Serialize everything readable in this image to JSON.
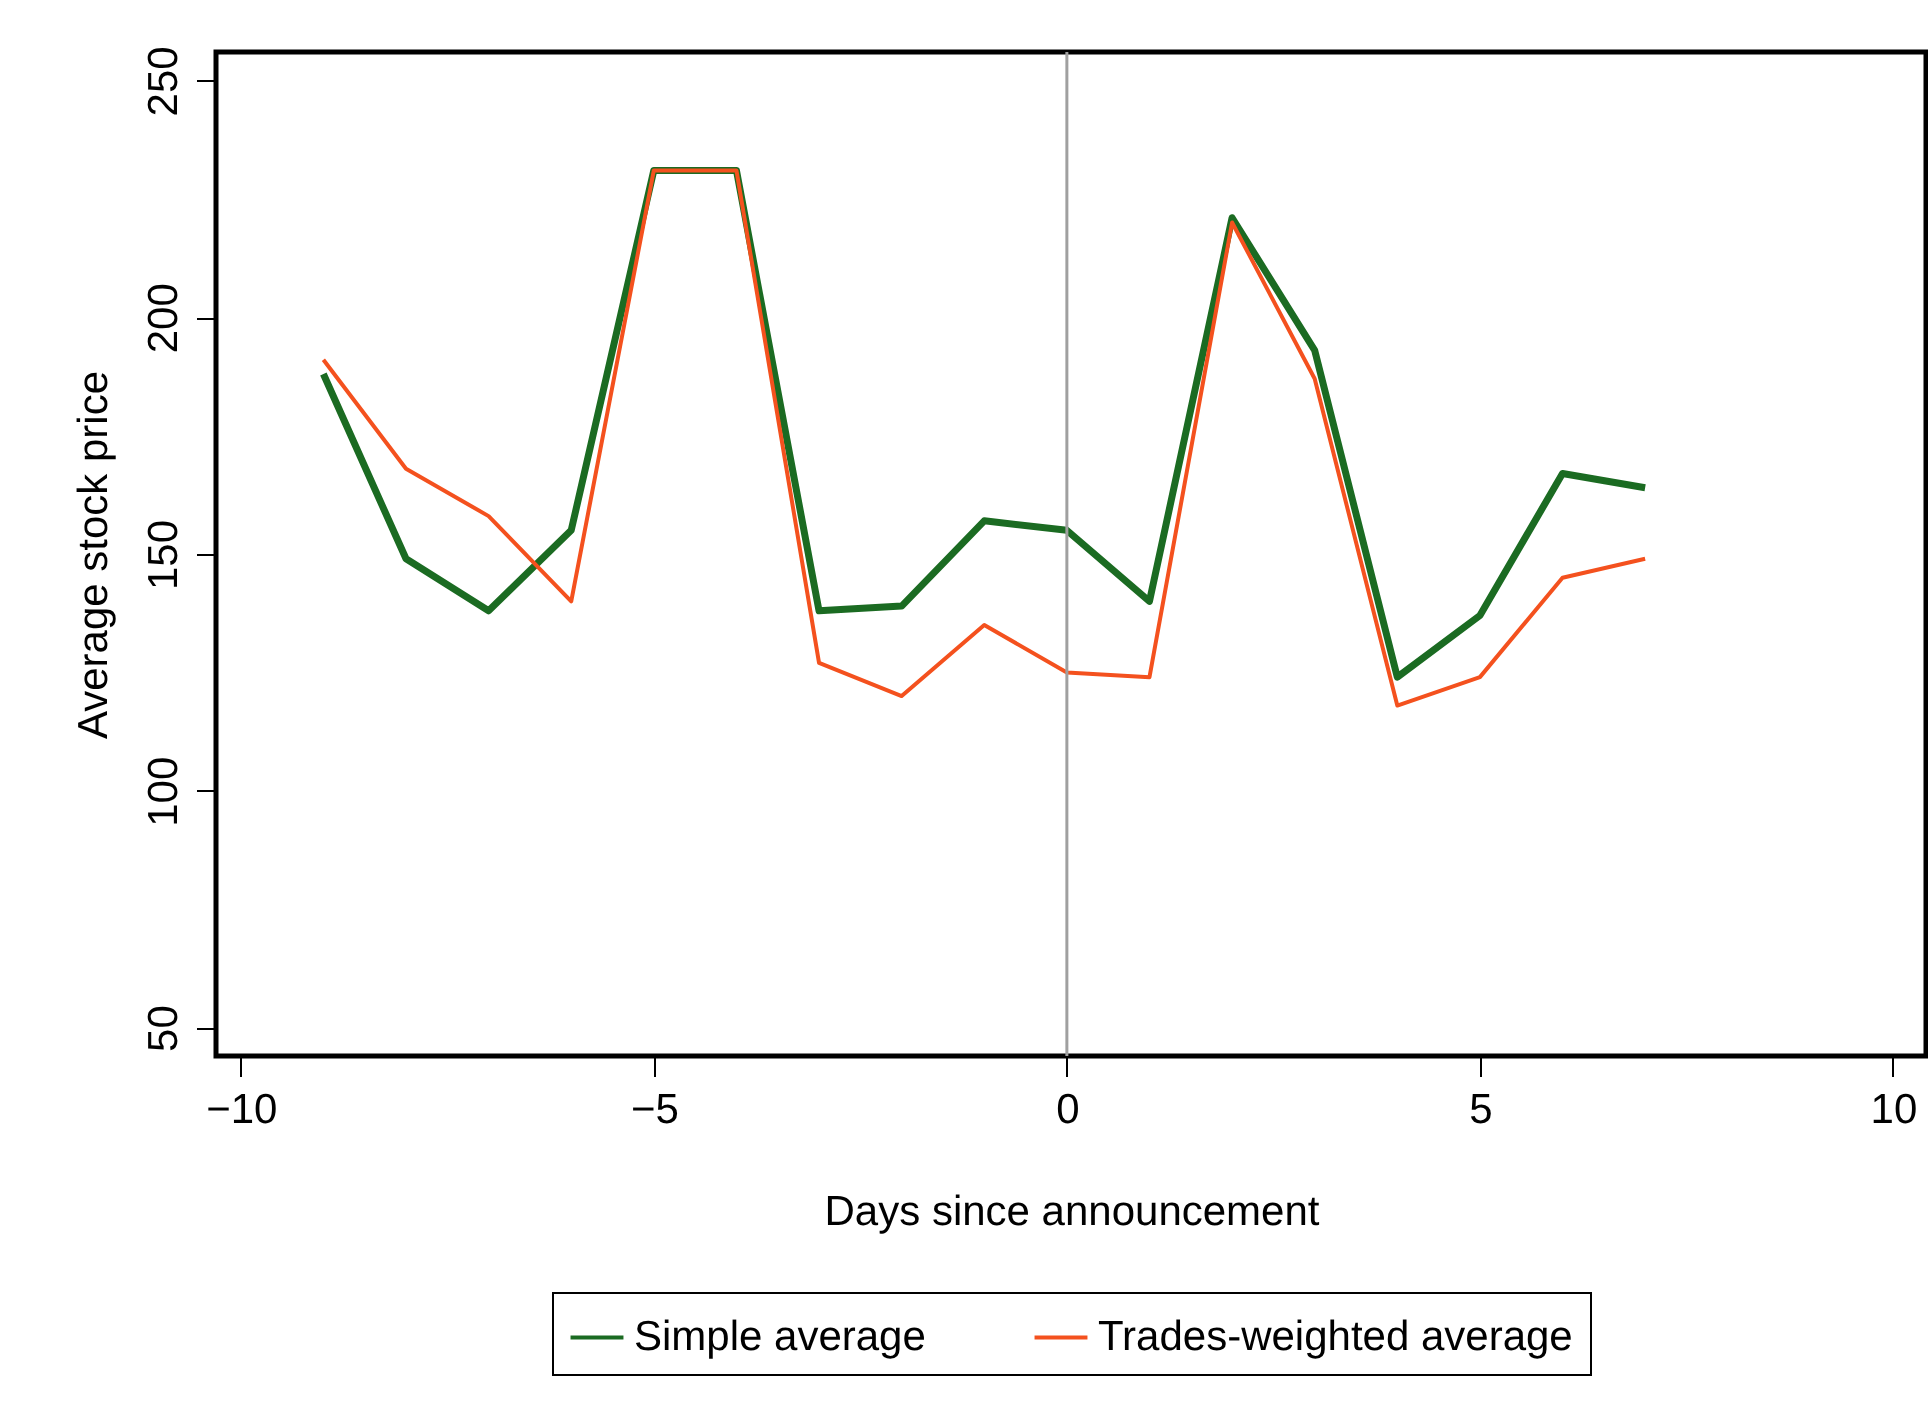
{
  "chart_data": {
    "type": "line",
    "xlabel": "Days since announcement",
    "ylabel": "Average stock price",
    "x": [
      -9,
      -8,
      -7,
      -6,
      -5,
      -4,
      -3,
      -2,
      -1,
      0,
      1,
      2,
      3,
      4,
      5,
      6,
      7
    ],
    "series": [
      {
        "name": "Simple average",
        "color": "#1b6b22",
        "values": [
          188,
          149,
          138,
          155,
          231,
          231,
          138,
          139,
          157,
          155,
          140,
          221,
          193,
          124,
          137,
          167,
          164
        ]
      },
      {
        "name": "Trades-weighted average",
        "color": "#f4511e",
        "values": [
          191,
          168,
          158,
          140,
          231,
          231,
          127,
          120,
          135,
          125,
          124,
          220,
          187,
          118,
          124,
          145,
          149
        ]
      }
    ],
    "xlim": [
      -10.3,
      10.4
    ],
    "ylim": [
      44,
      256
    ],
    "xticks": [
      -10,
      -5,
      0,
      5,
      10
    ],
    "yticks": [
      50,
      100,
      150,
      200,
      250
    ],
    "ref_lines": [
      {
        "axis": "x",
        "value": 0,
        "color": "#a0a0a0"
      }
    ],
    "grid": false,
    "legend": "bottom",
    "marker": "none",
    "line_style": "solid"
  }
}
